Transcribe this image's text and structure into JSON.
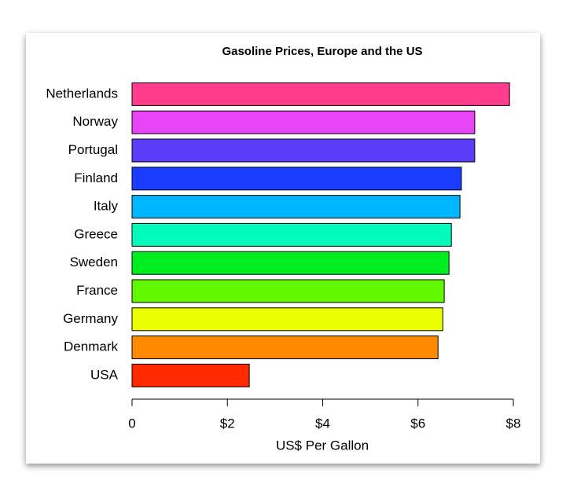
{
  "chart_data": {
    "type": "bar",
    "orientation": "horizontal",
    "title": "Gasoline Prices, Europe and the US",
    "x_label": "US$ Per Gallon",
    "categories": [
      "Netherlands",
      "Norway",
      "Portugal",
      "Finland",
      "Italy",
      "Greece",
      "Sweden",
      "France",
      "Germany",
      "Denmark",
      "USA"
    ],
    "values": [
      7.92,
      7.19,
      7.19,
      6.91,
      6.88,
      6.7,
      6.65,
      6.55,
      6.52,
      6.42,
      2.46
    ],
    "colors": [
      "#ff3d8b",
      "#e744f5",
      "#5a3cfa",
      "#1a3cff",
      "#00b7ff",
      "#00fbbb",
      "#00ee20",
      "#61f800",
      "#eaff00",
      "#ff8a00",
      "#ff2a00"
    ],
    "xlim": [
      0,
      8
    ],
    "xticks": [
      0,
      {
        "value": 2,
        "label": "$2"
      },
      {
        "value": 4,
        "label": "$4"
      },
      {
        "value": 6,
        "label": "$6"
      },
      {
        "value": 8,
        "label": "$8"
      }
    ]
  }
}
